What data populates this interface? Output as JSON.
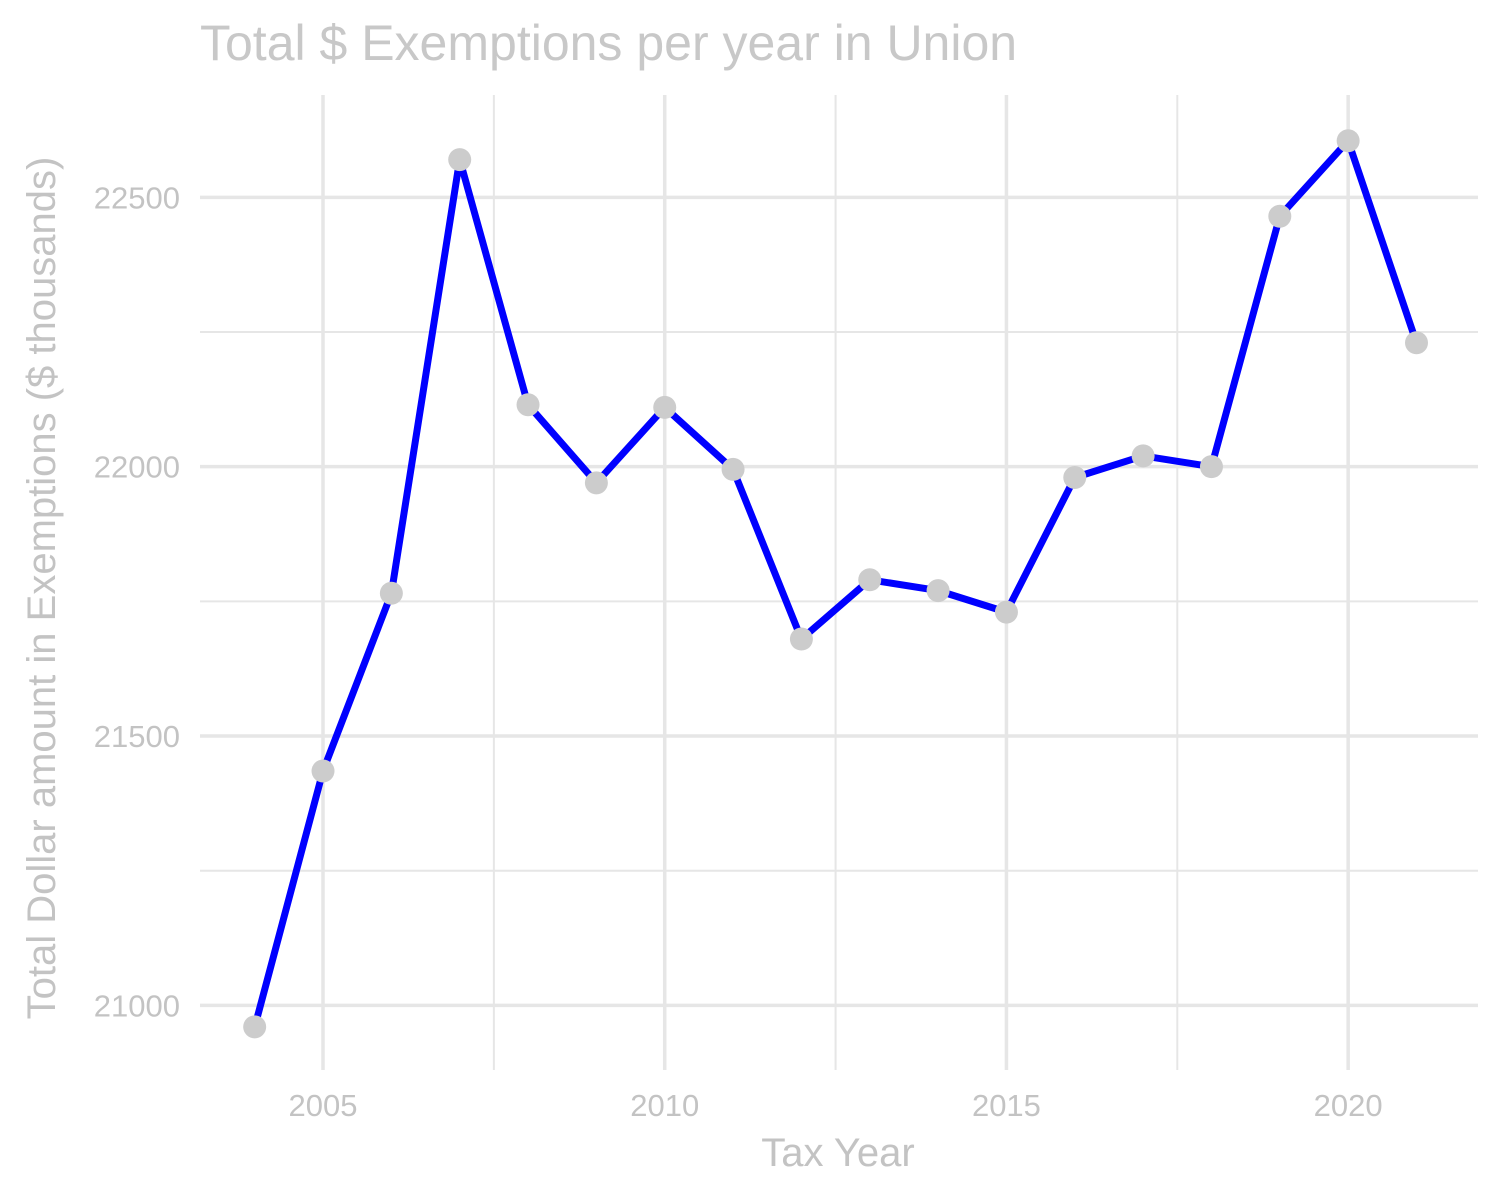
{
  "chart_data": {
    "type": "line",
    "title": "Total $ Exemptions per year in Union",
    "xlabel": "Tax Year",
    "ylabel": "Total Dollar amount in Exemptions ($ thousands)",
    "x": [
      2004,
      2005,
      2006,
      2007,
      2008,
      2009,
      2010,
      2011,
      2012,
      2013,
      2014,
      2015,
      2016,
      2017,
      2018,
      2019,
      2020,
      2021
    ],
    "series": [
      {
        "values": [
          20960,
          21435,
          21765,
          22570,
          22115,
          21970,
          22110,
          21995,
          21680,
          21790,
          21770,
          21730,
          21980,
          22020,
          22000,
          22465,
          22605,
          22230
        ]
      }
    ],
    "xlim": [
      2003.2,
      2021.9
    ],
    "ylim": [
      20880,
      22690
    ],
    "xticks": [
      2005,
      2010,
      2015,
      2020
    ],
    "yticks": [
      21000,
      21500,
      22000,
      22500
    ],
    "grid": true,
    "colors": {
      "line": "#0000ff",
      "points": "#cccccc",
      "grid": "#e6e6e6",
      "text": "#c3c3c3"
    }
  }
}
